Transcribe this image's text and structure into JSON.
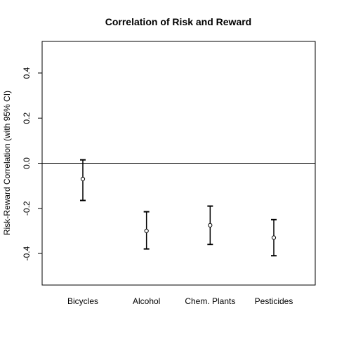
{
  "chart_data": {
    "type": "errorbar",
    "title": "Correlation of Risk and Reward",
    "xlabel": "",
    "ylabel": "Risk-Reward Correlation (with 95% CI)",
    "ylim": [
      -0.54,
      0.54
    ],
    "yticks": [
      "-0.4",
      "-0.2",
      "0.0",
      "0.2",
      "0.4"
    ],
    "ytick_values": [
      -0.4,
      -0.2,
      0.0,
      0.2,
      0.4
    ],
    "reference_line": 0.0,
    "grid": false,
    "categories": [
      "Bicycles",
      "Alcohol",
      "Chem. Plants",
      "Pesticides"
    ],
    "estimate": [
      -0.07,
      -0.3,
      -0.275,
      -0.33
    ],
    "ci_lower": [
      -0.165,
      -0.38,
      -0.36,
      -0.41
    ],
    "ci_upper": [
      0.015,
      -0.215,
      -0.19,
      -0.25
    ]
  }
}
